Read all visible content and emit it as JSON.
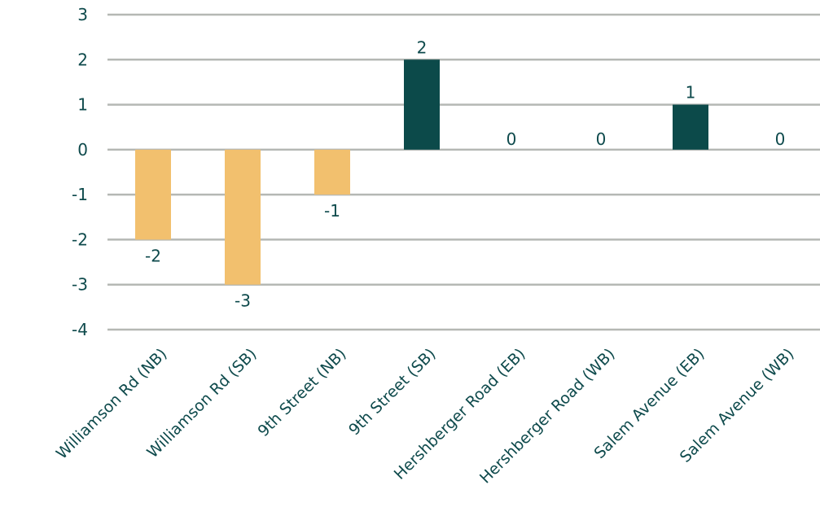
{
  "chart_data": {
    "type": "bar",
    "title": "",
    "xlabel": "",
    "ylabel": "",
    "categories": [
      "Williamson Rd (NB)",
      "Williamson Rd (SB)",
      "9th Street (NB)",
      "9th Street (SB)",
      "Hershberger Road (EB)",
      "Hershberger Road (WB)",
      "Salem Avenue (EB)",
      "Salem Avenue (WB)"
    ],
    "values": [
      -2,
      -3,
      -1,
      2,
      0,
      0,
      1,
      0
    ],
    "ylim": [
      -4,
      3
    ],
    "yticks": [
      3,
      2,
      1,
      0,
      -1,
      -2,
      -3,
      -4
    ],
    "grid": true,
    "data_labels": true,
    "colors": {
      "negative": "#f2c06e",
      "positive": "#0c4a4a",
      "text": "#0e4a4c",
      "grid": "#b5b8b4"
    }
  }
}
